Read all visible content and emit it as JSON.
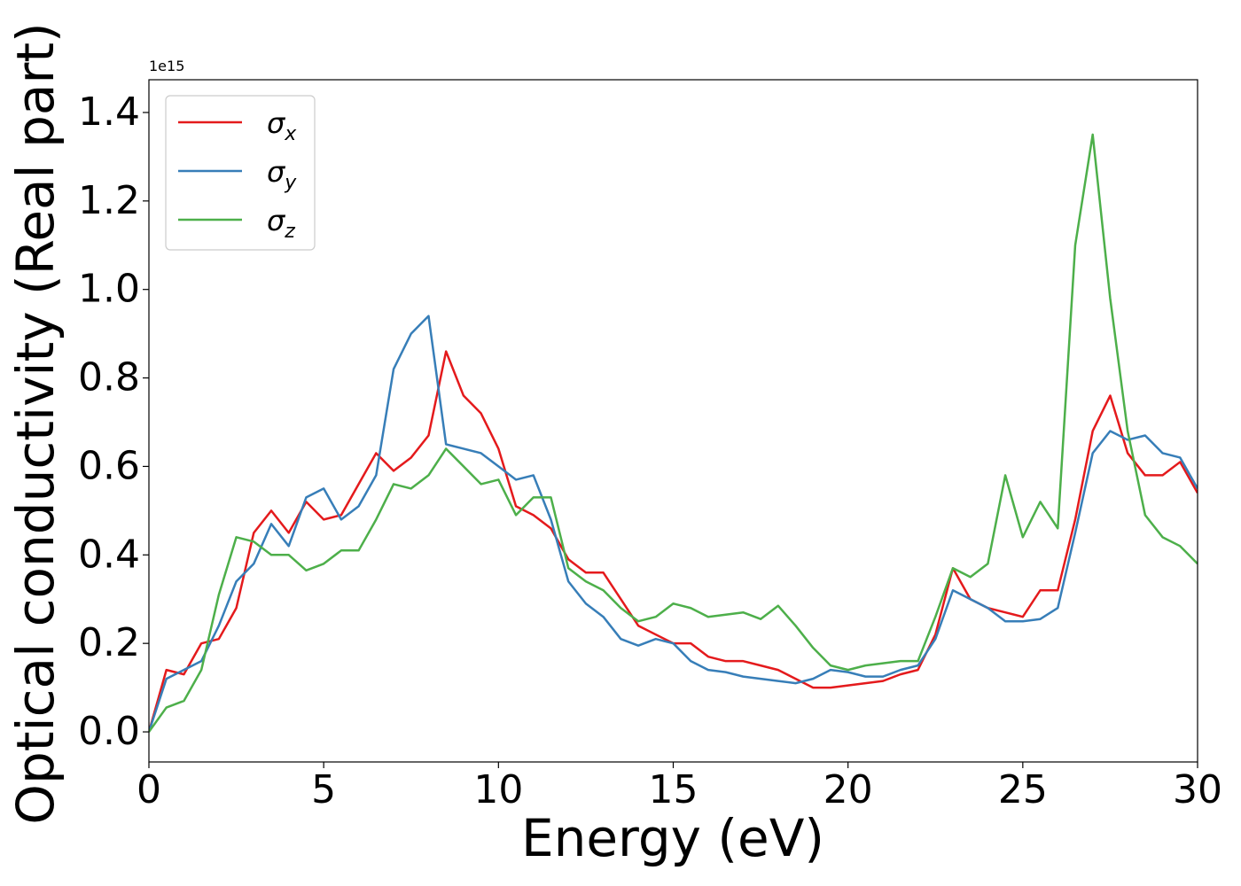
{
  "chart_data": {
    "type": "line",
    "x_label": "Energy (eV)",
    "y_label": "Optical conductivity (Real part)",
    "y_offset_label": "1e15",
    "x": [
      0,
      0.5,
      1,
      1.5,
      2,
      2.5,
      3,
      3.5,
      4,
      4.5,
      5,
      5.5,
      6,
      6.5,
      7,
      7.5,
      8,
      8.5,
      9,
      9.5,
      10,
      10.5,
      11,
      11.5,
      12,
      12.5,
      13,
      13.5,
      14,
      14.5,
      15,
      15.5,
      16,
      16.5,
      17,
      17.5,
      18,
      18.5,
      19,
      19.5,
      20,
      20.5,
      21,
      21.5,
      22,
      22.5,
      23,
      23.5,
      24,
      24.5,
      25,
      25.5,
      26,
      26.5,
      27,
      27.5,
      28,
      28.5,
      29,
      29.5,
      30
    ],
    "series": [
      {
        "name": "σx",
        "color": "#e41a1c",
        "values": [
          0,
          0.14,
          0.13,
          0.2,
          0.21,
          0.28,
          0.45,
          0.5,
          0.45,
          0.52,
          0.48,
          0.49,
          0.56,
          0.63,
          0.59,
          0.62,
          0.67,
          0.86,
          0.76,
          0.72,
          0.64,
          0.51,
          0.49,
          0.46,
          0.39,
          0.36,
          0.36,
          0.3,
          0.24,
          0.22,
          0.2,
          0.2,
          0.17,
          0.16,
          0.16,
          0.15,
          0.14,
          0.12,
          0.1,
          0.1,
          0.105,
          0.11,
          0.115,
          0.13,
          0.14,
          0.22,
          0.37,
          0.3,
          0.28,
          0.27,
          0.26,
          0.32,
          0.32,
          0.48,
          0.68,
          0.76,
          0.63,
          0.58,
          0.58,
          0.61,
          0.54
        ]
      },
      {
        "name": "σy",
        "color": "#377eb8",
        "values": [
          0,
          0.12,
          0.14,
          0.16,
          0.24,
          0.34,
          0.38,
          0.47,
          0.42,
          0.53,
          0.55,
          0.48,
          0.51,
          0.58,
          0.82,
          0.9,
          0.94,
          0.65,
          0.64,
          0.63,
          0.6,
          0.57,
          0.58,
          0.48,
          0.34,
          0.29,
          0.26,
          0.21,
          0.195,
          0.21,
          0.2,
          0.16,
          0.14,
          0.135,
          0.125,
          0.12,
          0.115,
          0.11,
          0.12,
          0.14,
          0.135,
          0.125,
          0.125,
          0.14,
          0.15,
          0.21,
          0.32,
          0.3,
          0.28,
          0.25,
          0.25,
          0.255,
          0.28,
          0.45,
          0.63,
          0.68,
          0.66,
          0.67,
          0.63,
          0.62,
          0.55
        ]
      },
      {
        "name": "σz",
        "color": "#4daf4a",
        "values": [
          0,
          0.055,
          0.07,
          0.14,
          0.31,
          0.44,
          0.43,
          0.4,
          0.4,
          0.365,
          0.38,
          0.41,
          0.41,
          0.48,
          0.56,
          0.55,
          0.58,
          0.64,
          0.6,
          0.56,
          0.57,
          0.49,
          0.53,
          0.53,
          0.37,
          0.34,
          0.32,
          0.28,
          0.25,
          0.26,
          0.29,
          0.28,
          0.26,
          0.265,
          0.27,
          0.255,
          0.285,
          0.24,
          0.19,
          0.15,
          0.14,
          0.15,
          0.155,
          0.16,
          0.16,
          0.26,
          0.37,
          0.35,
          0.38,
          0.58,
          0.44,
          0.52,
          0.46,
          1.1,
          1.35,
          0.98,
          0.68,
          0.49,
          0.44,
          0.42,
          0.38
        ]
      }
    ],
    "xlim": [
      0,
      30
    ],
    "xticks": [
      0,
      5,
      10,
      15,
      20,
      25,
      30
    ],
    "ylim": [
      -0.068,
      1.474
    ],
    "yticks": [
      {
        "value": 0,
        "label": "0.0"
      },
      0.2,
      0.4,
      0.6,
      0.8,
      {
        "value": 1,
        "label": "1.0"
      },
      1.2,
      1.4
    ],
    "grid": false,
    "legend": "upper left"
  }
}
